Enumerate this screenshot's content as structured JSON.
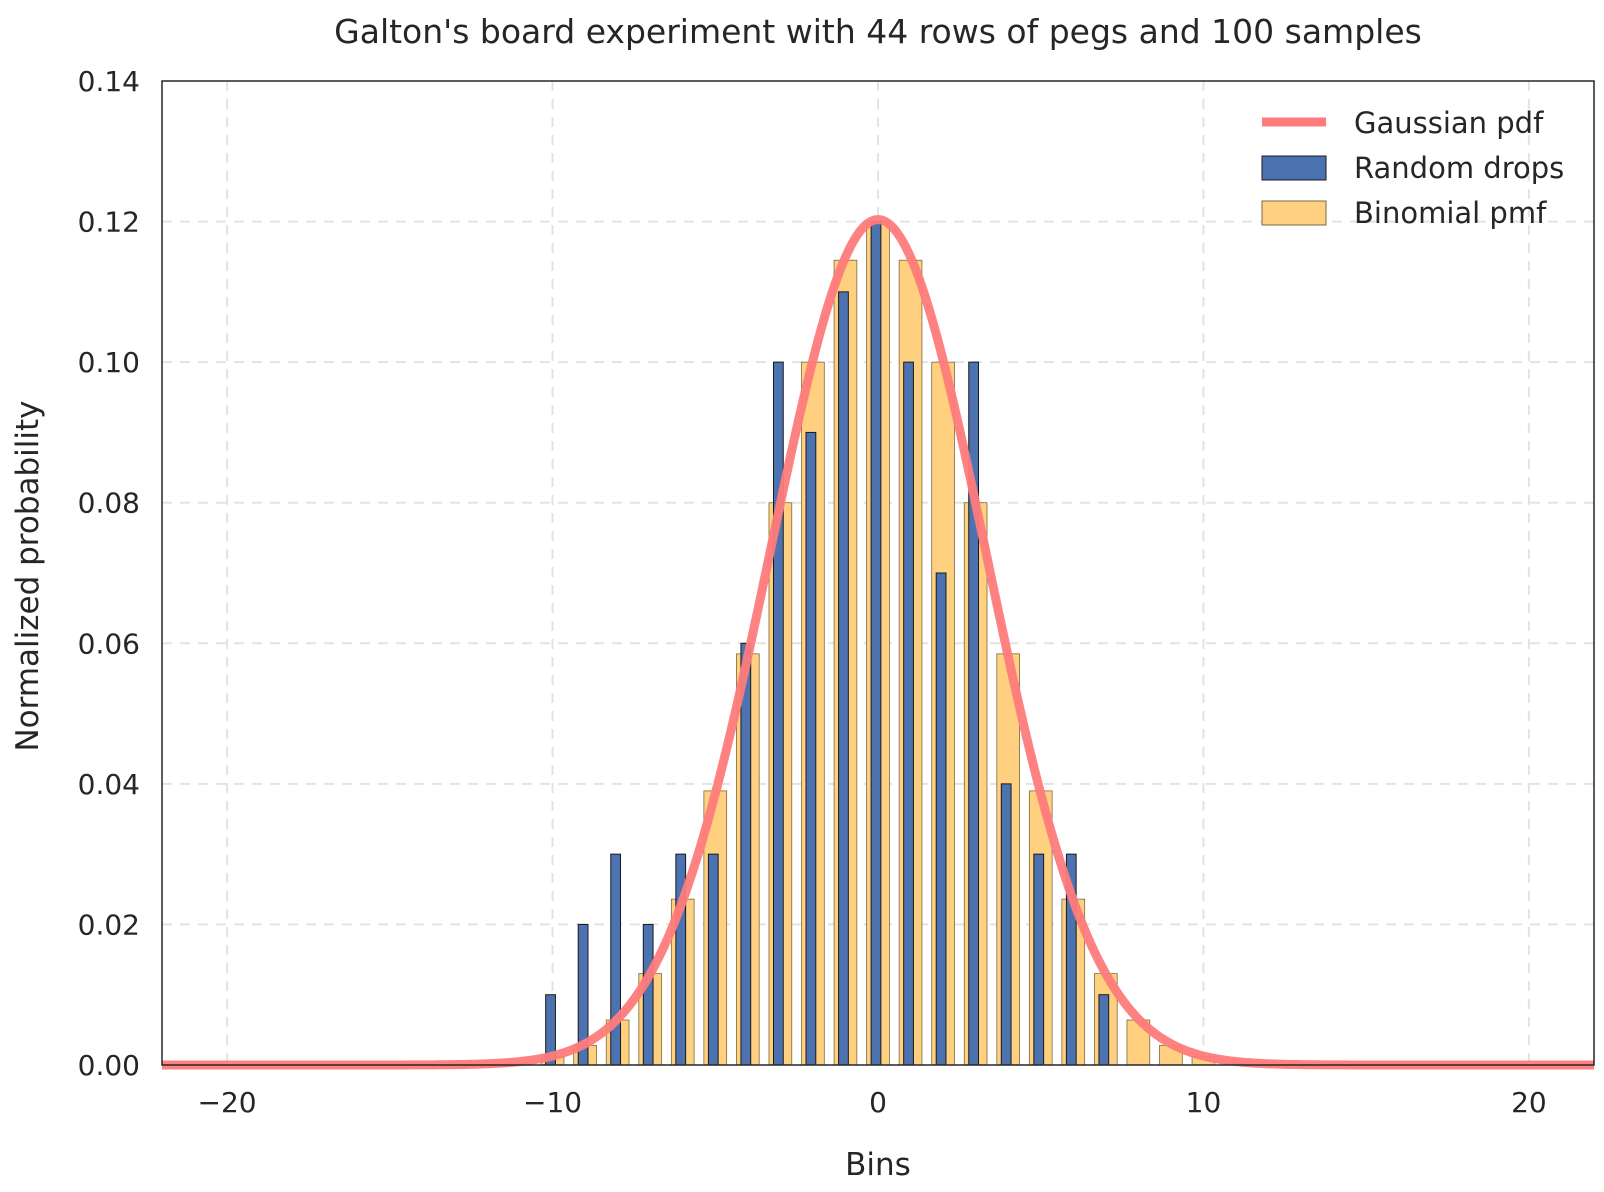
{
  "chart_data": {
    "type": "bar",
    "title": "Galton's board experiment with 44 rows of pegs and 100 samples",
    "xlabel": "Bins",
    "ylabel": "Normalized probability",
    "xlim": [
      -22,
      22
    ],
    "ylim": [
      0,
      0.14
    ],
    "xticks": [
      -20,
      -10,
      0,
      10,
      20
    ],
    "xtick_labels": [
      "−20",
      "−10",
      "0",
      "10",
      "20"
    ],
    "yticks": [
      0,
      0.02,
      0.04,
      0.06,
      0.08,
      0.1,
      0.12,
      0.14
    ],
    "ytick_labels": [
      "0.00",
      "0.02",
      "0.04",
      "0.06",
      "0.08",
      "0.10",
      "0.12",
      "0.14"
    ],
    "grid": true,
    "legend_position": "top-right",
    "colors": {
      "gaussian": "#ff7b7b",
      "random": "#4c72b0",
      "binomial": "#ffd07f",
      "axes": "#262626",
      "grid": "#e3e3e3"
    },
    "series": [
      {
        "name": "Gaussian pdf",
        "kind": "line",
        "mean": 0,
        "std": 3.3166
      },
      {
        "name": "Random drops",
        "kind": "bar",
        "x": [
          -10,
          -9,
          -8,
          -7,
          -6,
          -5,
          -4,
          -3,
          -2,
          -1,
          0,
          1,
          2,
          3,
          4,
          5,
          6,
          7
        ],
        "values": [
          0.01,
          0.02,
          0.03,
          0.02,
          0.03,
          0.03,
          0.06,
          0.1,
          0.09,
          0.11,
          0.12,
          0.1,
          0.07,
          0.1,
          0.04,
          0.03,
          0.03,
          0.01
        ]
      },
      {
        "name": "Binomial pmf",
        "kind": "bar",
        "x": [
          -11,
          -10,
          -9,
          -8,
          -7,
          -6,
          -5,
          -4,
          -3,
          -2,
          -1,
          0,
          1,
          2,
          3,
          4,
          5,
          6,
          7,
          8,
          9,
          10,
          11
        ],
        "values": [
          0.0002,
          0.0012,
          0.0028,
          0.0064,
          0.013,
          0.0236,
          0.039,
          0.0585,
          0.08,
          0.1,
          0.1145,
          0.12,
          0.1145,
          0.1,
          0.08,
          0.0585,
          0.039,
          0.0236,
          0.013,
          0.0064,
          0.0028,
          0.0012,
          0.0002
        ]
      }
    ]
  }
}
